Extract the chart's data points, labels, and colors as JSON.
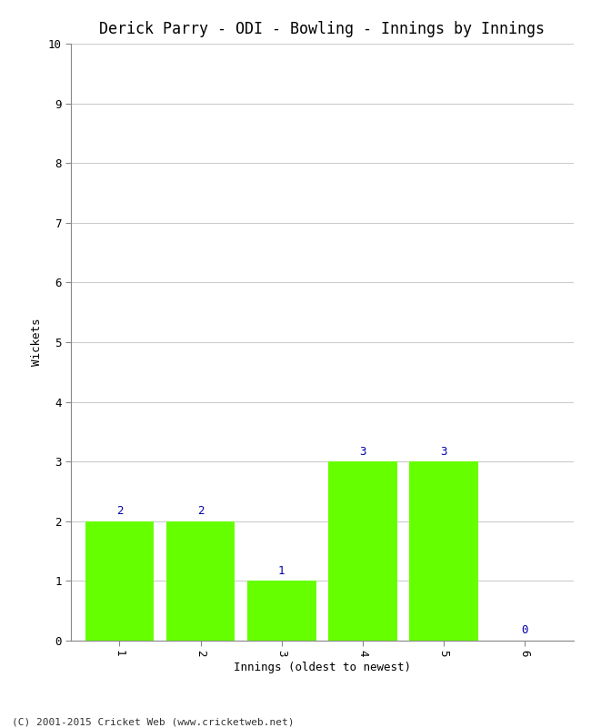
{
  "title": "Derick Parry - ODI - Bowling - Innings by Innings",
  "xlabel": "Innings (oldest to newest)",
  "ylabel": "Wickets",
  "categories": [
    "1",
    "2",
    "3",
    "4",
    "5",
    "6"
  ],
  "values": [
    2,
    2,
    1,
    3,
    3,
    0
  ],
  "bar_color": "#66ff00",
  "ylim": [
    0,
    10
  ],
  "yticks": [
    0,
    1,
    2,
    3,
    4,
    5,
    6,
    7,
    8,
    9,
    10
  ],
  "label_color": "#0000aa",
  "label_fontsize": 9,
  "title_fontsize": 12,
  "axis_fontsize": 9,
  "tick_fontsize": 9,
  "footer": "(C) 2001-2015 Cricket Web (www.cricketweb.net)",
  "background_color": "#ffffff",
  "grid_color": "#cccccc"
}
